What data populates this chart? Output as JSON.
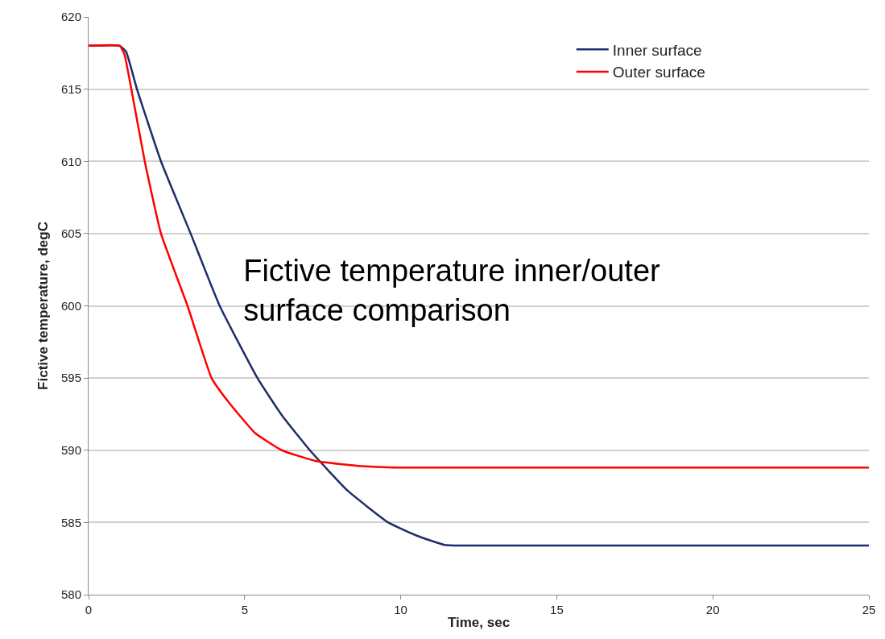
{
  "chart_data": {
    "type": "line",
    "title": "Fictive temperature inner/outer surface comparison",
    "xlabel": "Time, sec",
    "ylabel": "Fictive temperature, degC",
    "xlim": [
      0,
      25
    ],
    "xticks": [
      0,
      5,
      10,
      15,
      20,
      25
    ],
    "ylim": [
      580,
      620
    ],
    "yticks": [
      580,
      585,
      590,
      595,
      600,
      605,
      610,
      615,
      620
    ],
    "grid": "y",
    "legend": "top right",
    "marker": "none",
    "line_style": "solid",
    "series": [
      {
        "name": "Inner surface",
        "color": "#1f2d6b",
        "x": [
          0,
          1,
          1.2,
          1.55,
          2.32,
          3.27,
          4.2,
          5.41,
          6.2,
          7.09,
          8.3,
          9.6,
          10.5,
          11.4,
          12,
          25
        ],
        "values": [
          618,
          618,
          617.6,
          615,
          610,
          605,
          600,
          595,
          592.4,
          590,
          587.2,
          585,
          584.1,
          583.45,
          583.4,
          583.4
        ]
      },
      {
        "name": "Outer surface",
        "color": "#ff0000",
        "x": [
          0,
          1,
          1.15,
          1.37,
          1.8,
          2.32,
          3.17,
          3.94,
          4.46,
          5.33,
          6.19,
          7.29,
          8.76,
          10,
          25
        ],
        "values": [
          618,
          618,
          617.4,
          615,
          610,
          605,
          600,
          595,
          593.4,
          591.2,
          590,
          589.25,
          588.9,
          588.8,
          588.8
        ]
      }
    ]
  }
}
